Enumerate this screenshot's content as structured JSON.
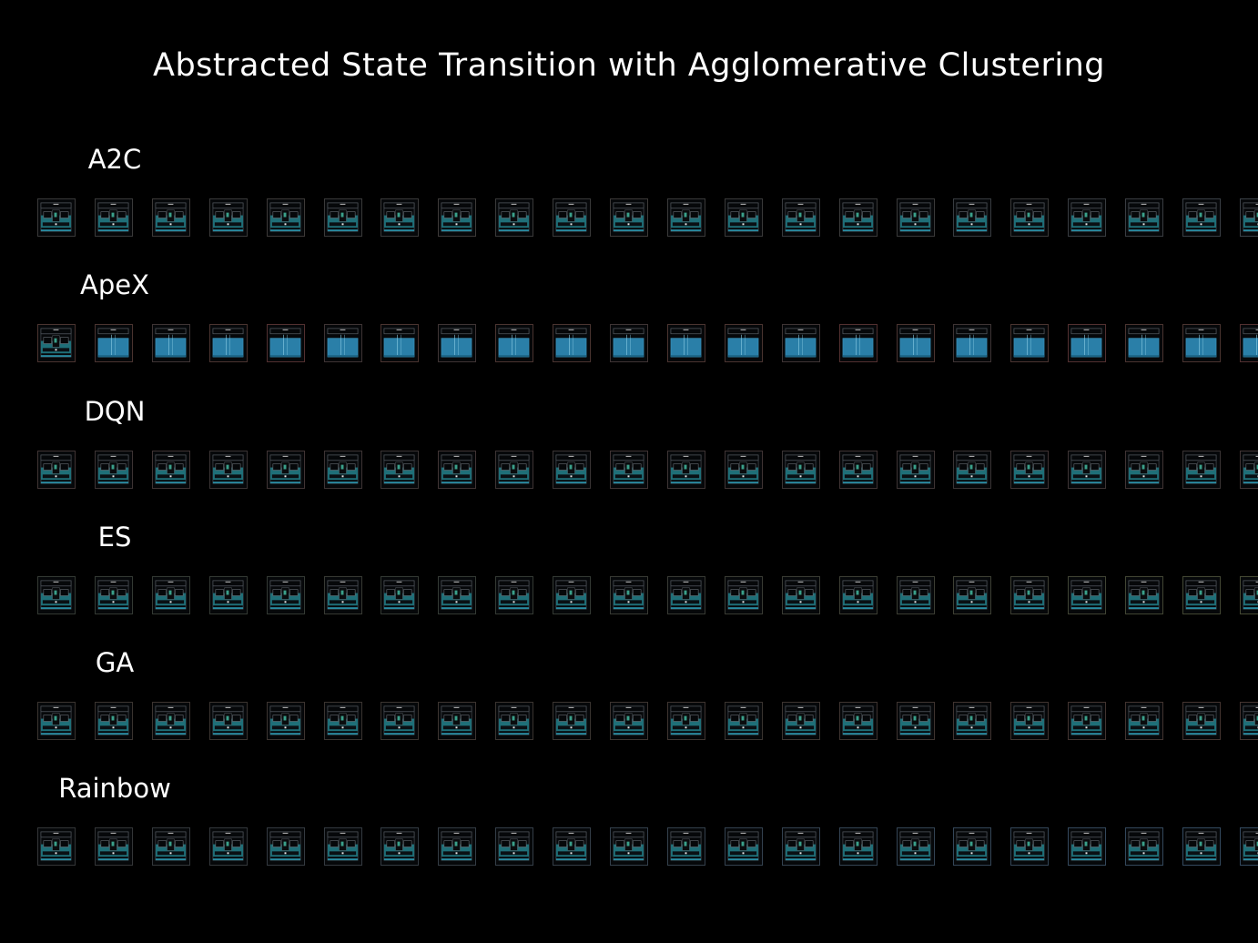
{
  "title": "Abstracted State Transition with Agglomerative Clustering",
  "rows": [
    {
      "label": "A2C",
      "frame_count": 22,
      "scene": "maze",
      "border_colors": [
        "#3a3a3a",
        "#3a3a3a",
        "#3d3a38",
        "#3a3a3a",
        "#3d3a38",
        "#3a3a3a",
        "#3a3a3a",
        "#3d3a38",
        "#3a3a3a",
        "#3a3a3a",
        "#3d3a38",
        "#3a3a3a",
        "#3a3a3a",
        "#383a3d",
        "#3a3a3a",
        "#3a3a3a",
        "#383c40",
        "#3a3a3a",
        "#383c40",
        "#3a3d42",
        "#3a4046",
        "#3c4248"
      ]
    },
    {
      "label": "ApeX",
      "frame_count": 22,
      "scene": "flooded",
      "border_colors": [
        "#4a3430",
        "#4a3430",
        "#3e3434",
        "#4a3430",
        "#523030",
        "#3e3434",
        "#4a3430",
        "#3e3434",
        "#4a3430",
        "#4a3430",
        "#3e3434",
        "#4a3430",
        "#4a3430",
        "#3e3434",
        "#523030",
        "#4a3430",
        "#3e3434",
        "#4a3430",
        "#523030",
        "#4a3430",
        "#4a3430",
        "#523030"
      ]
    },
    {
      "label": "DQN",
      "frame_count": 22,
      "scene": "maze",
      "border_colors": [
        "#403434",
        "#3d3434",
        "#403434",
        "#3a3434",
        "#403434",
        "#3d3434",
        "#3a3434",
        "#403434",
        "#3d3434",
        "#3a3434",
        "#403434",
        "#3d3434",
        "#403434",
        "#3a3434",
        "#403434",
        "#3d3434",
        "#3a3434",
        "#403434",
        "#3d3434",
        "#403434",
        "#3a3434",
        "#403434"
      ]
    },
    {
      "label": "ES",
      "frame_count": 22,
      "scene": "maze",
      "border_colors": [
        "#343a34",
        "#343a34",
        "#343a34",
        "#343a34",
        "#343a34",
        "#383a34",
        "#343a34",
        "#343a34",
        "#343a34",
        "#343a34",
        "#383a34",
        "#383a34",
        "#3a3c34",
        "#3a3c34",
        "#3c3e34",
        "#3c3e34",
        "#3e4034",
        "#3e4034",
        "#404434",
        "#424634",
        "#444834",
        "#464a34"
      ]
    },
    {
      "label": "GA",
      "frame_count": 22,
      "scene": "maze",
      "border_colors": [
        "#3a3430",
        "#3a3430",
        "#3c3430",
        "#3a3430",
        "#3c3430",
        "#3a3430",
        "#3a3430",
        "#3c3430",
        "#3a3430",
        "#3a3430",
        "#3c3430",
        "#3e3430",
        "#3a3430",
        "#3c3430",
        "#3e3430",
        "#3e3430",
        "#403430",
        "#403430",
        "#423430",
        "#423430",
        "#443430",
        "#443430"
      ]
    },
    {
      "label": "Rainbow",
      "frame_count": 22,
      "scene": "maze",
      "border_colors": [
        "#343638",
        "#343638",
        "#34383c",
        "#34383c",
        "#343a40",
        "#343a40",
        "#343c44",
        "#343c44",
        "#343e48",
        "#343e48",
        "#34404c",
        "#34404c",
        "#344250",
        "#344250",
        "#344454",
        "#344454",
        "#344658",
        "#344658",
        "#34485c",
        "#34485c",
        "#344a60",
        "#344a60"
      ]
    }
  ]
}
